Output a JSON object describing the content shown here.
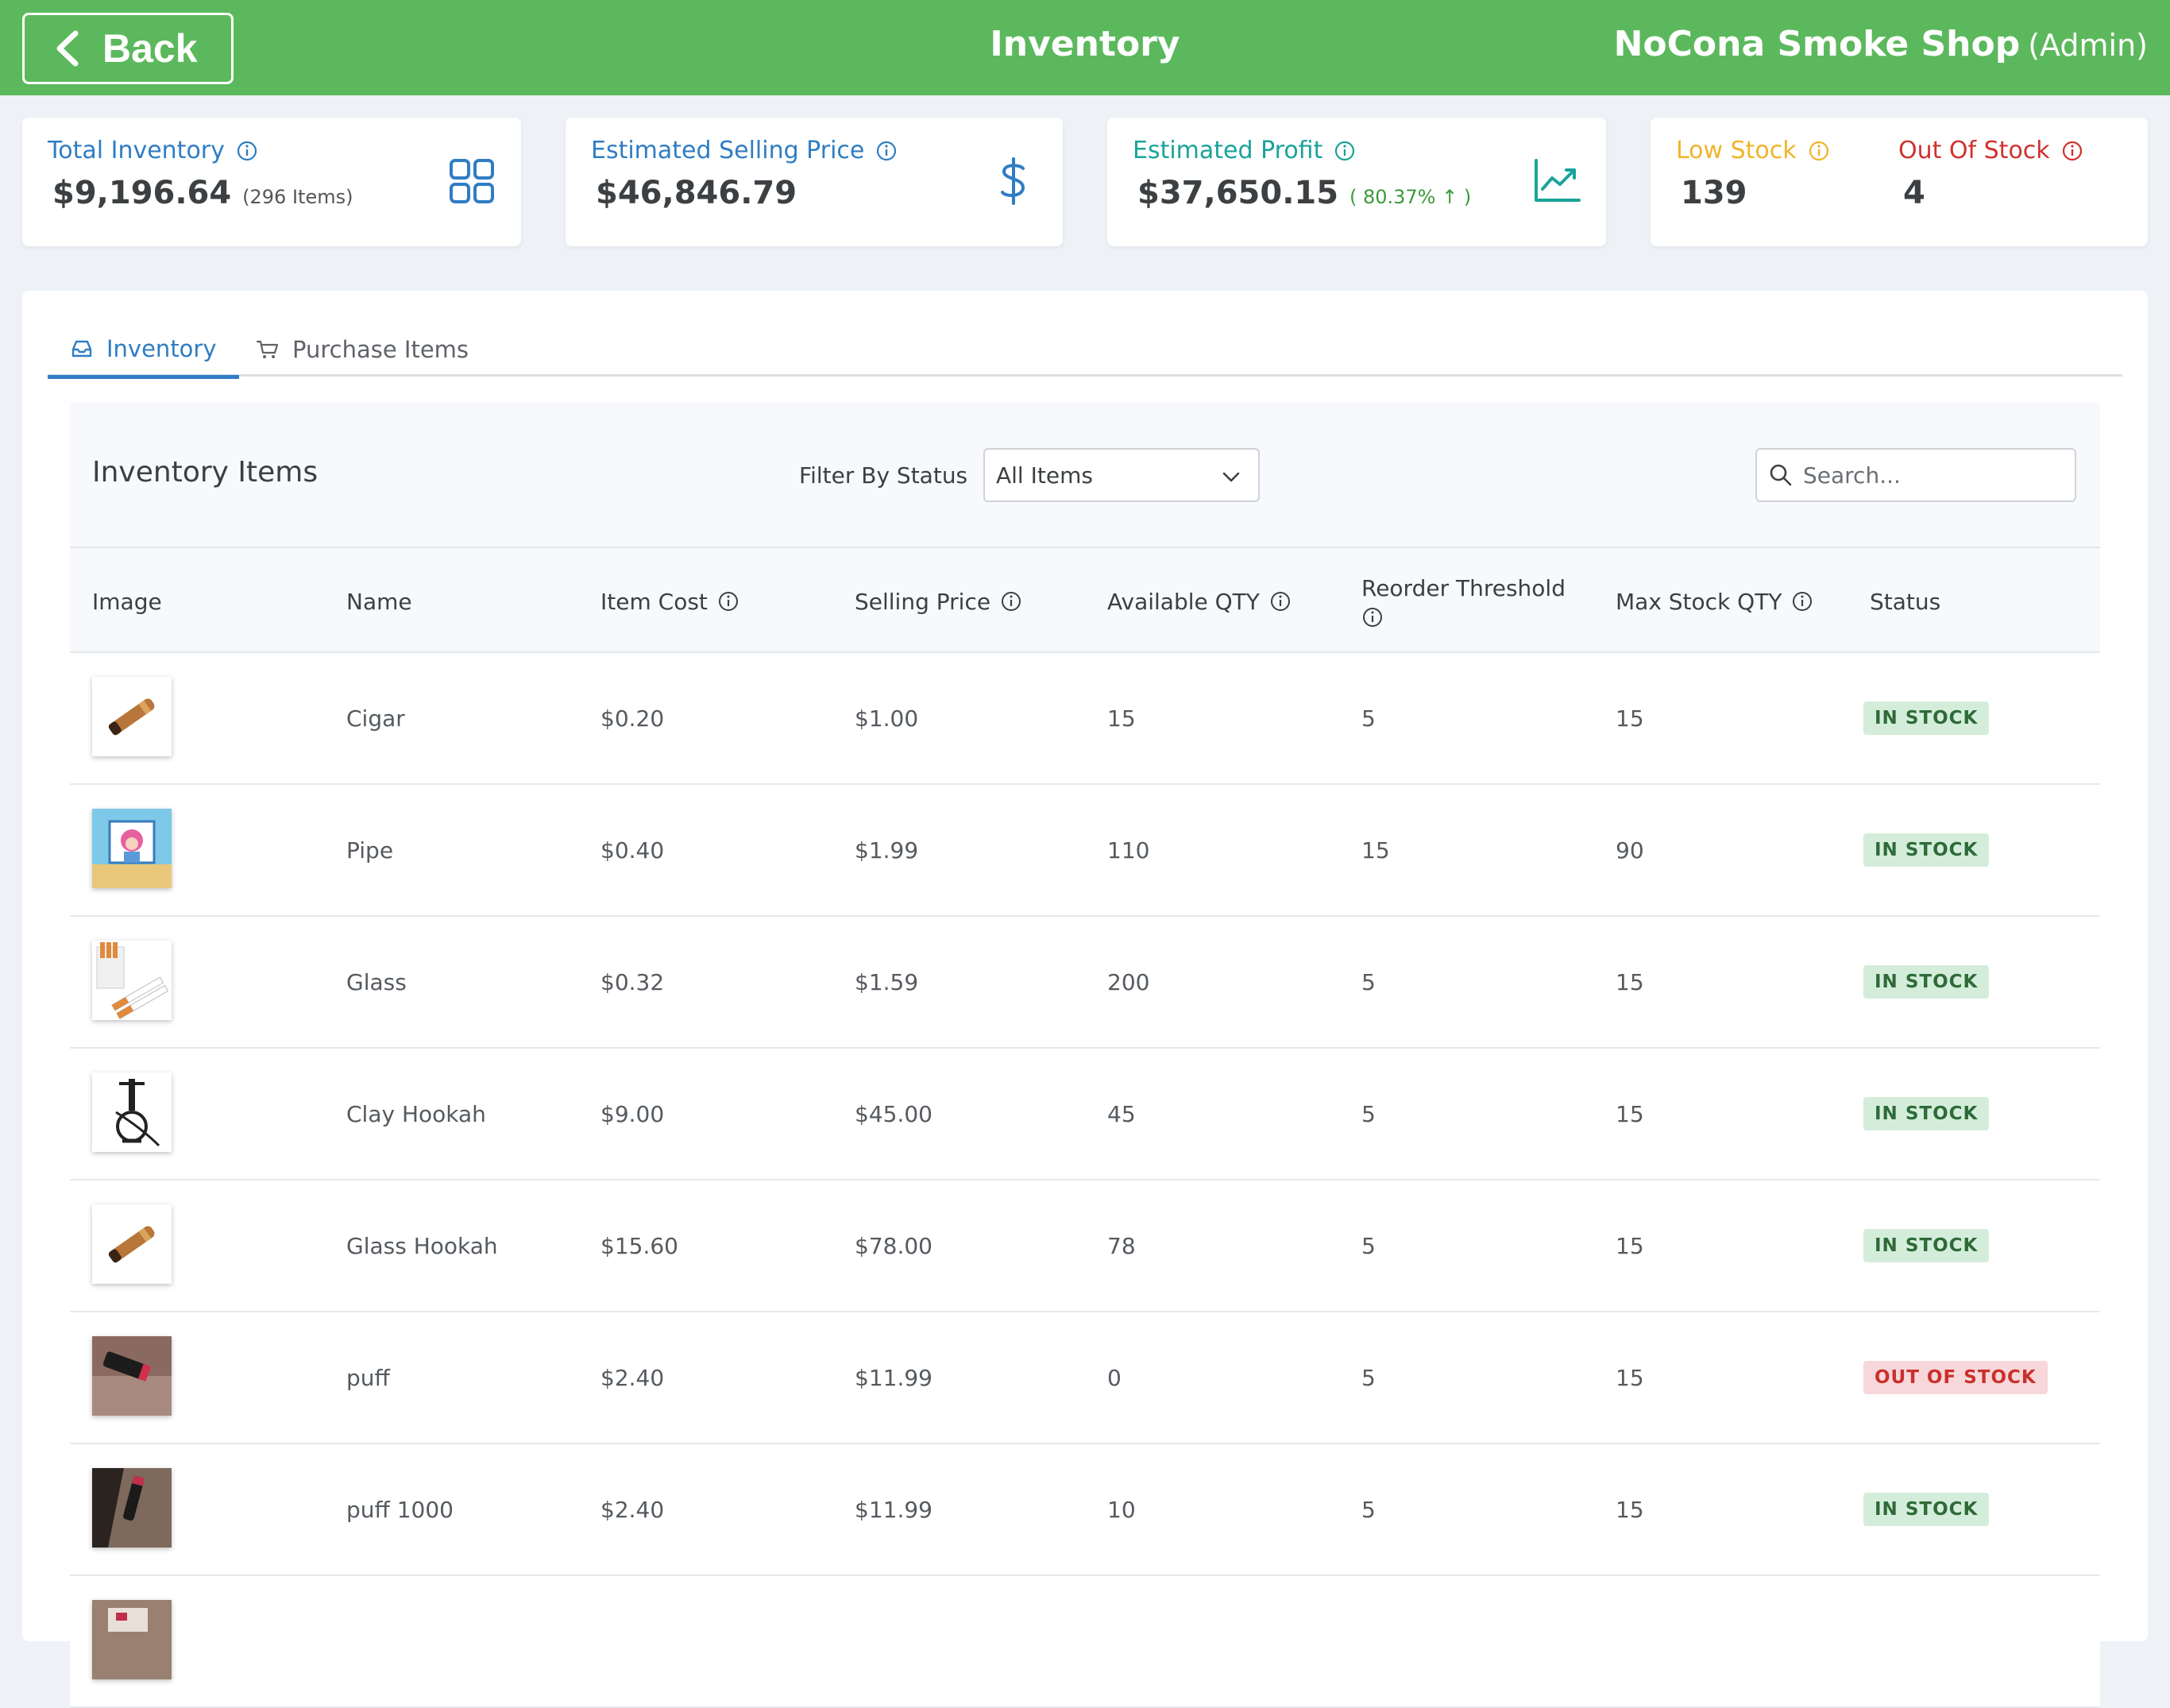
{
  "header": {
    "back_label": "Back",
    "title": "Inventory",
    "shop_name": "NoCona Smoke Shop",
    "role": "(Admin)"
  },
  "stats": {
    "total_inventory": {
      "label": "Total Inventory",
      "value": "$9,196.64",
      "sub": "(296 Items)",
      "color": "#2f7dc4"
    },
    "est_selling": {
      "label": "Estimated Selling Price",
      "value": "$46,846.79",
      "color": "#2f7dc4"
    },
    "est_profit": {
      "label": "Estimated Profit",
      "value": "$37,650.15",
      "pct": "( 80.37% ↑ )",
      "color": "#1aa39a"
    },
    "low_stock": {
      "label": "Low Stock",
      "value": "139",
      "color": "#f0b429"
    },
    "out_of_stock": {
      "label": "Out Of Stock",
      "value": "4",
      "color": "#d0312d"
    }
  },
  "tabs": [
    {
      "label": "Inventory",
      "icon": "inbox-icon",
      "active": true
    },
    {
      "label": "Purchase Items",
      "icon": "cart-icon",
      "active": false
    }
  ],
  "toolbar": {
    "title": "Inventory Items",
    "filter_label": "Filter By Status",
    "filter_value": "All Items",
    "search_placeholder": "Search..."
  },
  "columns": {
    "image": "Image",
    "name": "Name",
    "item_cost": "Item Cost",
    "selling_price": "Selling Price",
    "available_qty": "Available QTY",
    "reorder_threshold": "Reorder Threshold",
    "max_stock_qty": "Max Stock QTY",
    "status": "Status"
  },
  "rows": [
    {
      "name": "Cigar",
      "cost": "$0.20",
      "price": "$1.00",
      "qty": "15",
      "reorder": "5",
      "max": "15",
      "status": "IN STOCK",
      "image": "cigar-image"
    },
    {
      "name": "Pipe",
      "cost": "$0.40",
      "price": "$1.99",
      "qty": "110",
      "reorder": "15",
      "max": "90",
      "status": "IN STOCK",
      "image": "cartoon-image"
    },
    {
      "name": "Glass",
      "cost": "$0.32",
      "price": "$1.59",
      "qty": "200",
      "reorder": "5",
      "max": "15",
      "status": "IN STOCK",
      "image": "cigarettes-image"
    },
    {
      "name": "Clay Hookah",
      "cost": "$9.00",
      "price": "$45.00",
      "qty": "45",
      "reorder": "5",
      "max": "15",
      "status": "IN STOCK",
      "image": "hookah-image"
    },
    {
      "name": "Glass Hookah",
      "cost": "$15.60",
      "price": "$78.00",
      "qty": "78",
      "reorder": "5",
      "max": "15",
      "status": "IN STOCK",
      "image": "cigar-image"
    },
    {
      "name": "puff",
      "cost": "$2.40",
      "price": "$11.99",
      "qty": "0",
      "reorder": "5",
      "max": "15",
      "status": "OUT OF STOCK",
      "image": "vape-image"
    },
    {
      "name": "puff 1000",
      "cost": "$2.40",
      "price": "$11.99",
      "qty": "10",
      "reorder": "5",
      "max": "15",
      "status": "IN STOCK",
      "image": "vape-dark-image"
    }
  ]
}
